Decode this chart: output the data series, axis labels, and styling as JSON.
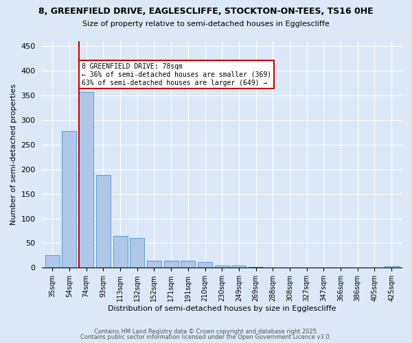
{
  "title1": "8, GREENFIELD DRIVE, EAGLESCLIFFE, STOCKTON-ON-TEES, TS16 0HE",
  "title2": "Size of property relative to semi-detached houses in Egglescliffe",
  "xlabel": "Distribution of semi-detached houses by size in Egglescliffe",
  "ylabel": "Number of semi-detached properties",
  "bar_labels": [
    "35sqm",
    "54sqm",
    "74sqm",
    "93sqm",
    "113sqm",
    "132sqm",
    "152sqm",
    "171sqm",
    "191sqm",
    "210sqm",
    "230sqm",
    "249sqm",
    "269sqm",
    "288sqm",
    "308sqm",
    "327sqm",
    "347sqm",
    "366sqm",
    "386sqm",
    "405sqm",
    "425sqm"
  ],
  "bar_values": [
    25,
    278,
    357,
    188,
    65,
    60,
    15,
    15,
    15,
    11,
    5,
    5,
    2,
    0,
    0,
    0,
    0,
    0,
    0,
    0,
    3
  ],
  "bar_color": "#aec6e8",
  "bar_edge_color": "#5b9bd5",
  "vline_index": 2,
  "annotation_title": "8 GREENFIELD DRIVE: 78sqm",
  "annotation_line1": "← 36% of semi-detached houses are smaller (369)",
  "annotation_line2": "63% of semi-detached houses are larger (649) →",
  "annotation_box_color": "#ffffff",
  "annotation_box_edge": "#cc0000",
  "vline_color": "#cc0000",
  "ylim": [
    0,
    460
  ],
  "yticks": [
    0,
    50,
    100,
    150,
    200,
    250,
    300,
    350,
    400,
    450
  ],
  "background_color": "#dce8f5",
  "footer1": "Contains HM Land Registry data © Crown copyright and database right 2025.",
  "footer2": "Contains public sector information licensed under the Open Government Licence v3.0."
}
